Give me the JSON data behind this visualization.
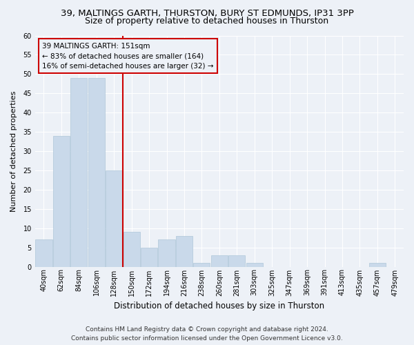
{
  "title": "39, MALTINGS GARTH, THURSTON, BURY ST EDMUNDS, IP31 3PP",
  "subtitle": "Size of property relative to detached houses in Thurston",
  "xlabel": "Distribution of detached houses by size in Thurston",
  "ylabel": "Number of detached properties",
  "footer_line1": "Contains HM Land Registry data © Crown copyright and database right 2024.",
  "footer_line2": "Contains public sector information licensed under the Open Government Licence v3.0.",
  "categories": [
    "40sqm",
    "62sqm",
    "84sqm",
    "106sqm",
    "128sqm",
    "150sqm",
    "172sqm",
    "194sqm",
    "216sqm",
    "238sqm",
    "260sqm",
    "281sqm",
    "303sqm",
    "325sqm",
    "347sqm",
    "369sqm",
    "391sqm",
    "413sqm",
    "435sqm",
    "457sqm",
    "479sqm"
  ],
  "values": [
    7,
    34,
    49,
    49,
    25,
    9,
    5,
    7,
    8,
    1,
    3,
    3,
    1,
    0,
    0,
    0,
    0,
    0,
    0,
    1,
    0
  ],
  "bar_color": "#c9d9ea",
  "bar_edge_color": "#aec6d8",
  "property_line_index": 5,
  "property_line_color": "#cc0000",
  "annotation_title": "39 MALTINGS GARTH: 151sqm",
  "annotation_line1": "← 83% of detached houses are smaller (164)",
  "annotation_line2": "16% of semi-detached houses are larger (32) →",
  "annotation_box_color": "#cc0000",
  "ylim": [
    0,
    60
  ],
  "yticks": [
    0,
    5,
    10,
    15,
    20,
    25,
    30,
    35,
    40,
    45,
    50,
    55,
    60
  ],
  "background_color": "#edf1f7",
  "grid_color": "#ffffff",
  "title_fontsize": 9.5,
  "subtitle_fontsize": 9,
  "ylabel_fontsize": 8,
  "xlabel_fontsize": 8.5,
  "tick_fontsize": 7,
  "footer_fontsize": 6.5
}
